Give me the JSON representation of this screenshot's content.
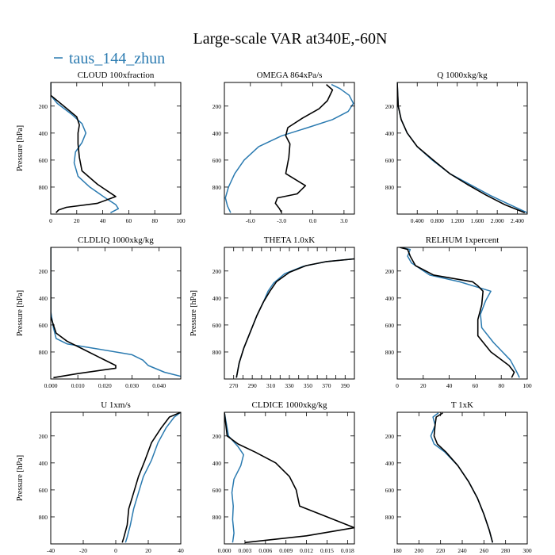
{
  "figure": {
    "title": "Large-scale VAR at340E,-60N",
    "legend_label": "taus_144_zhun",
    "colors": {
      "zhun": "#2a7ab0",
      "ref": "#000000"
    }
  },
  "chart_data": [
    {
      "type": "line",
      "title": "CLOUD 100xfraction",
      "ylabel": "Pressure [hPa]",
      "xlim": [
        0,
        100
      ],
      "ylim": [
        1000,
        25
      ],
      "xticks": [
        0,
        20,
        40,
        60,
        80,
        100
      ],
      "xticklabels": [
        "0",
        "20",
        "40",
        "60",
        "80",
        "100"
      ],
      "yticks": [
        200,
        400,
        600,
        800
      ],
      "yticklabels": [
        "200",
        "400",
        "600",
        "800"
      ],
      "series": [
        {
          "color": "#2a7ab0",
          "x": [
            0,
            0,
            5,
            16,
            24,
            27,
            24,
            19,
            18,
            21,
            30,
            42,
            50,
            52,
            46
          ],
          "y": [
            25,
            120,
            180,
            260,
            330,
            400,
            470,
            540,
            620,
            720,
            800,
            880,
            930,
            960,
            990
          ]
        },
        {
          "color": "#000000",
          "x": [
            0,
            0,
            10,
            20,
            22,
            21,
            21,
            22,
            24,
            36,
            50,
            36,
            12,
            6,
            4
          ],
          "y": [
            25,
            120,
            200,
            280,
            340,
            400,
            480,
            580,
            680,
            780,
            870,
            920,
            950,
            970,
            990
          ]
        }
      ]
    },
    {
      "type": "line",
      "title": "OMEGA 864xPa/s",
      "ylabel": "",
      "xlim": [
        -8.5,
        4
      ],
      "ylim": [
        1000,
        25
      ],
      "xticks": [
        -6,
        -3,
        0,
        3
      ],
      "xticklabels": [
        "-6.0",
        "-3.0",
        "0.0",
        "3.0"
      ],
      "yticks": [
        200,
        400,
        600,
        800
      ],
      "yticklabels": [
        "200",
        "400",
        "600",
        "800"
      ],
      "series": [
        {
          "color": "#2a7ab0",
          "x": [
            1.8,
            2.6,
            3.5,
            3.9,
            3.4,
            1.9,
            -0.5,
            -3.0,
            -5.2,
            -6.6,
            -7.5,
            -8.1,
            -8.4,
            -8.2,
            -7.9
          ],
          "y": [
            40,
            70,
            120,
            180,
            240,
            300,
            360,
            420,
            500,
            600,
            700,
            800,
            880,
            940,
            990
          ]
        },
        {
          "color": "#000000",
          "x": [
            1.3,
            1.9,
            1.4,
            0.6,
            -1.0,
            -2.4,
            -2.6,
            -2.2,
            -2.3,
            -2.6,
            -0.7,
            -1.5,
            -3.4,
            -3.6,
            -3.2,
            -3.0
          ],
          "y": [
            40,
            80,
            160,
            220,
            290,
            360,
            420,
            480,
            580,
            700,
            790,
            850,
            880,
            920,
            960,
            990
          ]
        }
      ]
    },
    {
      "type": "line",
      "title": "Q 1000xkg/kg",
      "ylabel": "",
      "xlim": [
        0,
        2.6
      ],
      "ylim": [
        1000,
        25
      ],
      "xticks": [
        0.4,
        0.8,
        1.2,
        1.6,
        2.0,
        2.4
      ],
      "xticklabels": [
        "0.400",
        "0.800",
        "1.200",
        "1.600",
        "2.000",
        "2.400"
      ],
      "yticks": [
        200,
        400,
        600,
        800
      ],
      "yticklabels": [
        "200",
        "400",
        "600",
        "800"
      ],
      "series": [
        {
          "color": "#2a7ab0",
          "x": [
            0,
            0.02,
            0.08,
            0.2,
            0.4,
            0.7,
            1.05,
            1.45,
            1.85,
            2.25,
            2.6
          ],
          "y": [
            25,
            200,
            300,
            400,
            500,
            600,
            700,
            780,
            860,
            930,
            990
          ]
        },
        {
          "color": "#000000",
          "x": [
            0,
            0.02,
            0.08,
            0.2,
            0.4,
            0.72,
            1.05,
            1.4,
            1.78,
            2.15,
            2.55
          ],
          "y": [
            25,
            200,
            300,
            400,
            500,
            600,
            700,
            780,
            860,
            930,
            990
          ]
        }
      ]
    },
    {
      "type": "line",
      "title": "CLDLIQ 1000xkg/kg",
      "ylabel": "Pressure [hPa]",
      "xlim": [
        0,
        0.048
      ],
      "ylim": [
        1000,
        25
      ],
      "xticks": [
        0,
        0.01,
        0.02,
        0.03,
        0.04
      ],
      "xticklabels": [
        "0.000",
        "0.010",
        "0.020",
        "0.030",
        "0.040"
      ],
      "yticks": [
        200,
        400,
        600,
        800
      ],
      "yticklabels": [
        "200",
        "400",
        "600",
        "800"
      ],
      "series": [
        {
          "color": "#2a7ab0",
          "x": [
            0,
            0,
            0.001,
            0.002,
            0.006,
            0.018,
            0.03,
            0.034,
            0.036,
            0.042,
            0.048
          ],
          "y": [
            25,
            500,
            620,
            700,
            740,
            780,
            820,
            860,
            900,
            950,
            980
          ]
        },
        {
          "color": "#000000",
          "x": [
            0,
            0,
            0.002,
            0.006,
            0.012,
            0.018,
            0.022,
            0.024,
            0.024,
            0.01,
            0.001
          ],
          "y": [
            25,
            540,
            660,
            720,
            780,
            840,
            880,
            900,
            920,
            960,
            990
          ]
        }
      ]
    },
    {
      "type": "line",
      "title": "THETA 1.0xK",
      "ylabel": "Pressure [hPa]",
      "xlim": [
        260,
        400
      ],
      "ylim": [
        1000,
        25
      ],
      "xticks": [
        270,
        280,
        290,
        300,
        310,
        320,
        330,
        340,
        350,
        360,
        370,
        380,
        390,
        400
      ],
      "xticklabels": [
        "270",
        "",
        "290",
        "",
        "310",
        "",
        "330",
        "",
        "350",
        "",
        "370",
        "",
        "390",
        ""
      ],
      "yticks": [
        200,
        400,
        600,
        800
      ],
      "yticklabels": [
        "200",
        "400",
        "600",
        "800"
      ],
      "series": [
        {
          "color": "#2a7ab0",
          "x": [
            400,
            370,
            345,
            325,
            313,
            307,
            302,
            295,
            288,
            281,
            276,
            273
          ],
          "y": [
            110,
            130,
            165,
            220,
            290,
            350,
            430,
            530,
            650,
            770,
            880,
            990
          ]
        },
        {
          "color": "#000000",
          "x": [
            400,
            370,
            348,
            330,
            316,
            309,
            302,
            295,
            288,
            281,
            276,
            273
          ],
          "y": [
            110,
            130,
            160,
            210,
            280,
            350,
            430,
            530,
            650,
            770,
            880,
            990
          ]
        }
      ]
    },
    {
      "type": "line",
      "title": "RELHUM 1xpercent",
      "ylabel": "",
      "xlim": [
        0,
        100
      ],
      "ylim": [
        1000,
        25
      ],
      "xticks": [
        0,
        20,
        40,
        60,
        80,
        100
      ],
      "xticklabels": [
        "0",
        "20",
        "40",
        "60",
        "80",
        "100"
      ],
      "yticks": [
        200,
        400,
        600,
        800
      ],
      "yticklabels": [
        "200",
        "400",
        "600",
        "800"
      ],
      "series": [
        {
          "color": "#2a7ab0",
          "x": [
            2,
            10,
            8,
            11,
            25,
            48,
            72,
            68,
            64,
            65,
            74,
            87,
            92,
            94
          ],
          "y": [
            25,
            40,
            90,
            140,
            230,
            280,
            350,
            420,
            520,
            620,
            730,
            860,
            950,
            990
          ]
        },
        {
          "color": "#000000",
          "x": [
            2,
            8,
            10,
            14,
            28,
            58,
            62,
            66,
            65,
            62,
            62,
            72,
            86,
            90,
            88
          ],
          "y": [
            25,
            40,
            90,
            160,
            230,
            280,
            310,
            350,
            450,
            560,
            680,
            800,
            900,
            950,
            990
          ]
        }
      ]
    },
    {
      "type": "line",
      "title": "U 1xm/s",
      "ylabel": "Pressure [hPa]",
      "xlim": [
        -40,
        40
      ],
      "ylim": [
        1000,
        25
      ],
      "xticks": [
        -40,
        -20,
        0,
        20,
        40
      ],
      "xticklabels": [
        "-40",
        "-20",
        "0",
        "20",
        "40"
      ],
      "yticks": [
        200,
        400,
        600,
        800
      ],
      "yticklabels": [
        "200",
        "400",
        "600",
        "800"
      ],
      "series": [
        {
          "color": "#2a7ab0",
          "x": [
            40,
            36,
            31,
            26,
            22,
            17,
            14,
            11,
            9,
            7,
            6
          ],
          "y": [
            25,
            60,
            140,
            250,
            380,
            500,
            620,
            740,
            860,
            950,
            990
          ]
        },
        {
          "color": "#000000",
          "x": [
            40,
            33,
            28,
            22,
            18,
            14,
            11,
            8,
            7,
            5,
            4
          ],
          "y": [
            25,
            60,
            140,
            250,
            380,
            500,
            620,
            740,
            860,
            950,
            990
          ]
        }
      ]
    },
    {
      "type": "line",
      "title": "CLDICE 1000xkg/kg",
      "ylabel": "",
      "xlim": [
        0,
        0.019
      ],
      "ylim": [
        1000,
        25
      ],
      "xticks": [
        0,
        0.003,
        0.006,
        0.009,
        0.012,
        0.015,
        0.018
      ],
      "xticklabels": [
        "0.000",
        "0.003",
        "0.006",
        "0.009",
        "0.012",
        "0.015",
        "0.018"
      ],
      "yticks": [
        200,
        400,
        600,
        800
      ],
      "yticklabels": [
        "200",
        "400",
        "600",
        "800"
      ],
      "series": [
        {
          "color": "#2a7ab0",
          "x": [
            0,
            0.0006,
            0.002,
            0.0028,
            0.0024,
            0.0014,
            0.0011,
            0.0013,
            0.0012,
            0.0014,
            0.0012
          ],
          "y": [
            25,
            200,
            280,
            340,
            420,
            520,
            620,
            720,
            820,
            920,
            990
          ]
        },
        {
          "color": "#000000",
          "x": [
            0,
            0.0004,
            0.002,
            0.0045,
            0.0075,
            0.0095,
            0.0105,
            0.011,
            0.014,
            0.017,
            0.019,
            0.012,
            0.003
          ],
          "y": [
            25,
            200,
            260,
            320,
            400,
            500,
            600,
            720,
            780,
            840,
            880,
            940,
            990
          ]
        }
      ]
    },
    {
      "type": "line",
      "title": "T 1xK",
      "ylabel": "",
      "xlim": [
        180,
        300
      ],
      "ylim": [
        1000,
        25
      ],
      "xticks": [
        180,
        200,
        220,
        240,
        260,
        280,
        300
      ],
      "xticklabels": [
        "180",
        "200",
        "220",
        "240",
        "260",
        "280",
        "300"
      ],
      "yticks": [
        200,
        400,
        600,
        800
      ],
      "yticklabels": [
        "200",
        "400",
        "600",
        "800"
      ],
      "series": [
        {
          "color": "#2a7ab0",
          "x": [
            218,
            213,
            215,
            211,
            214,
            224,
            236,
            246,
            254,
            260,
            265,
            268
          ],
          "y": [
            30,
            60,
            120,
            200,
            260,
            320,
            420,
            540,
            660,
            780,
            900,
            990
          ]
        },
        {
          "color": "#000000",
          "x": [
            222,
            216,
            215,
            214,
            217,
            225,
            236,
            246,
            254,
            260,
            265,
            268
          ],
          "y": [
            30,
            60,
            120,
            200,
            260,
            320,
            420,
            540,
            660,
            780,
            900,
            990
          ]
        }
      ]
    }
  ]
}
